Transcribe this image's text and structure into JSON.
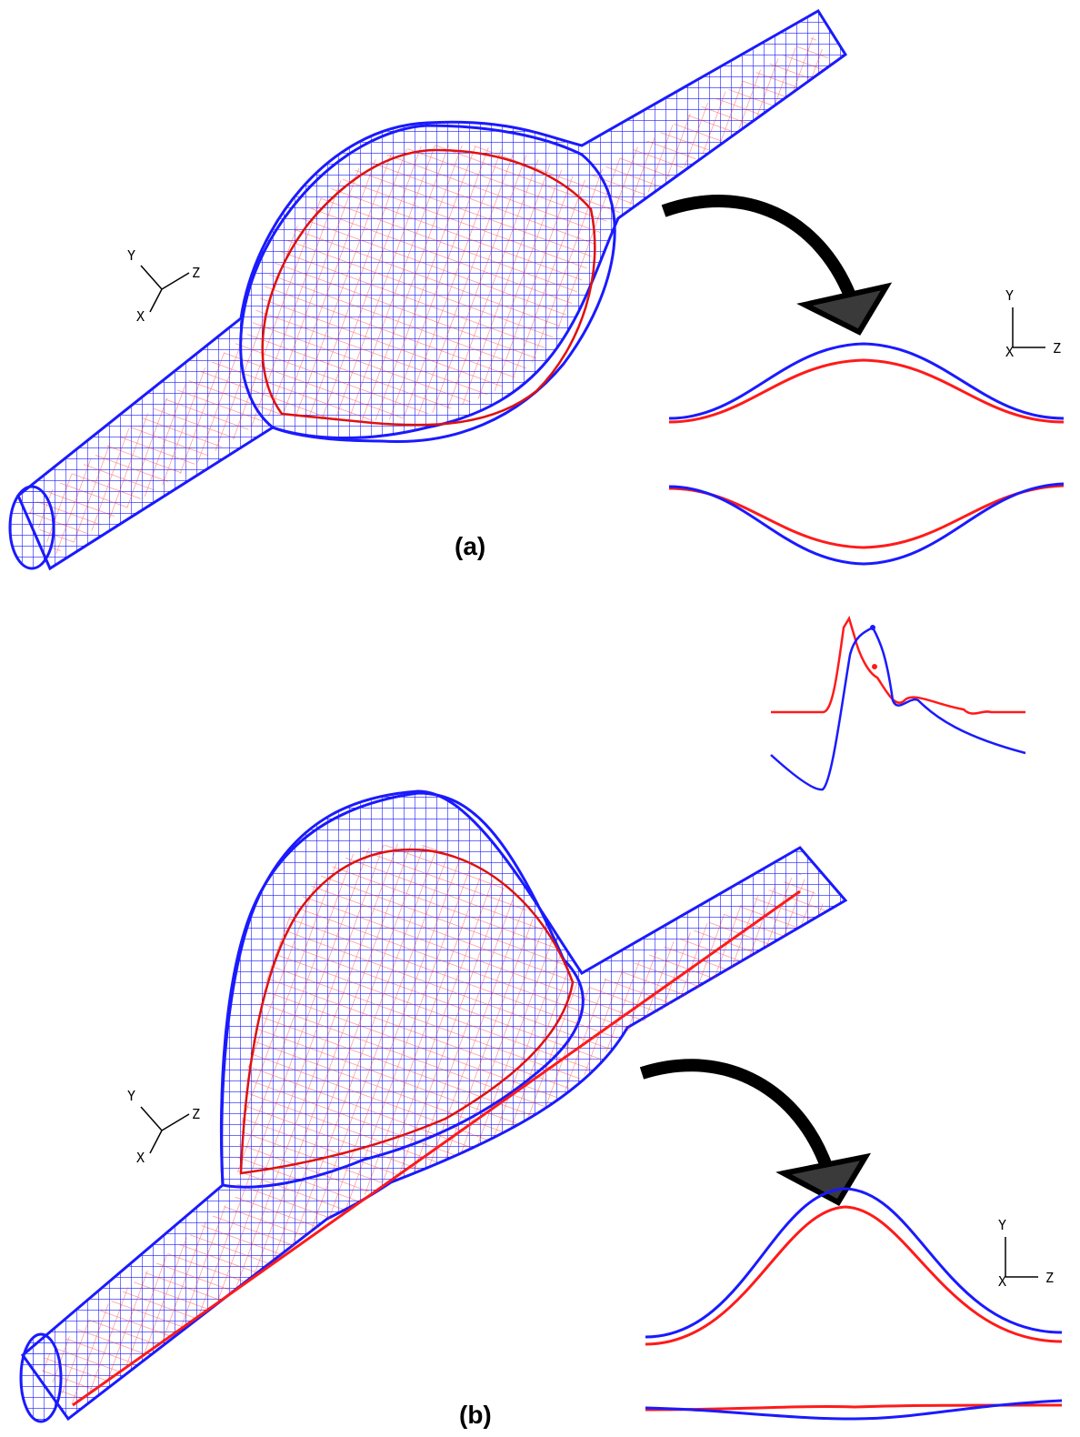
{
  "panels": [
    {
      "label": "(a)"
    },
    {
      "label": "(b)"
    }
  ],
  "axis_letters": {
    "x": "X",
    "y": "Y",
    "z": "Z"
  },
  "colors": {
    "initial_wall": "#ff1a1a",
    "deformed_wall": "#1a1aff",
    "arrow": "#000000",
    "arrow_head": "#3a3a3a"
  },
  "icons": [
    "curved-arrow-icon",
    "axis-triad-icon"
  ]
}
